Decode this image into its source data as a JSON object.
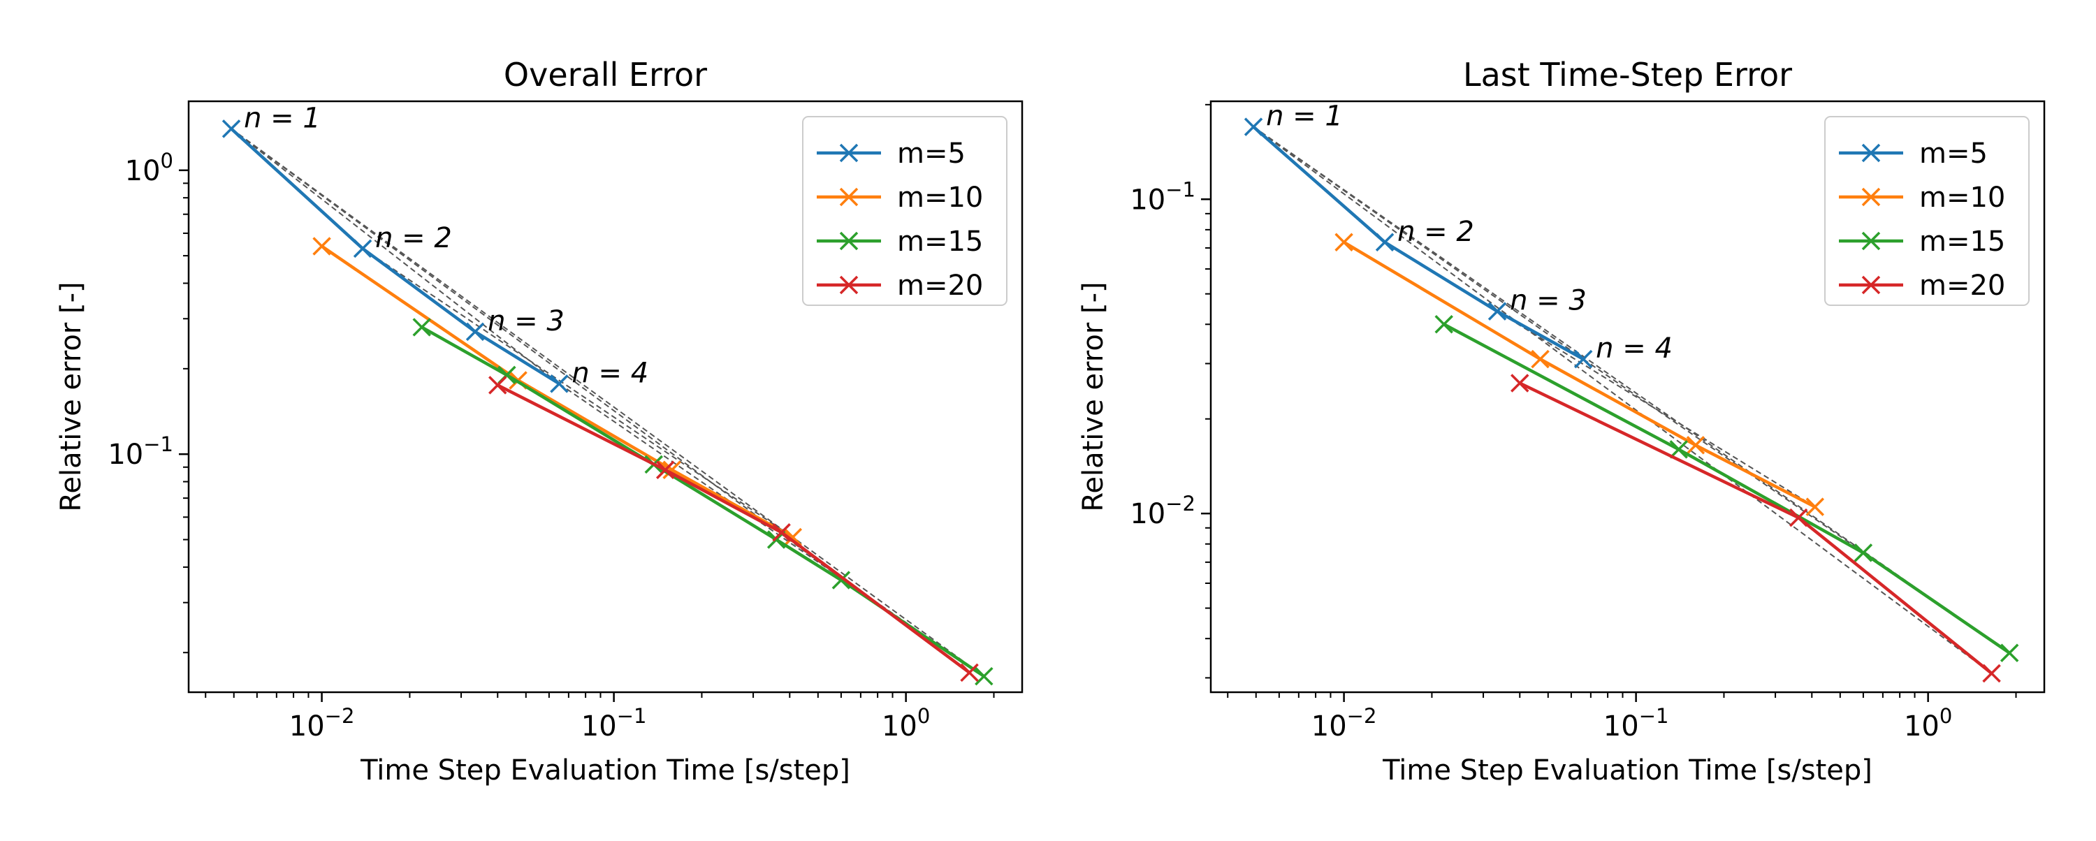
{
  "chart_data": [
    {
      "type": "line",
      "title": "Overall Error",
      "xlabel": "Time Step Evaluation Time [s/step]",
      "ylabel": "Relative error [-]",
      "xscale": "log",
      "yscale": "log",
      "xlim": [
        0.0035,
        2.5
      ],
      "ylim": [
        0.0145,
        1.75
      ],
      "xticks": [
        {
          "value": 0.01,
          "label": "10^-2"
        },
        {
          "value": 0.1,
          "label": "10^-1"
        },
        {
          "value": 1,
          "label": "10^0"
        }
      ],
      "yticks": [
        {
          "value": 0.1,
          "label": "10^-1"
        },
        {
          "value": 1,
          "label": "10^0"
        }
      ],
      "grid": false,
      "legend_position": "upper right",
      "series": [
        {
          "name": "m=5",
          "color": "#1f77b4",
          "x": [
            0.0049,
            0.0138,
            0.0335,
            0.065
          ],
          "y": [
            1.4,
            0.53,
            0.27,
            0.177
          ]
        },
        {
          "name": "m=10",
          "color": "#ff7f0e",
          "x": [
            0.01,
            0.047,
            0.158,
            0.41
          ],
          "y": [
            0.54,
            0.182,
            0.088,
            0.051
          ]
        },
        {
          "name": "m=15",
          "color": "#2ca02c",
          "x": [
            0.022,
            0.043,
            0.137,
            0.36,
            0.6,
            1.85
          ],
          "y": [
            0.28,
            0.19,
            0.092,
            0.05,
            0.036,
            0.0165
          ]
        },
        {
          "name": "m=20",
          "color": "#d62728",
          "x": [
            0.04,
            0.15,
            0.375,
            1.65
          ],
          "y": [
            0.175,
            0.088,
            0.053,
            0.017
          ]
        }
      ],
      "reference_lines": [
        {
          "x": [
            0.0049,
            0.065
          ],
          "y": [
            1.4,
            0.177
          ]
        },
        {
          "x": [
            0.0049,
            1.85
          ],
          "y": [
            1.4,
            0.0165
          ]
        },
        {
          "x": [
            0.0049,
            1.65
          ],
          "y": [
            1.4,
            0.017
          ]
        },
        {
          "x": [
            0.0138,
            0.41
          ],
          "y": [
            0.53,
            0.051
          ]
        },
        {
          "x": [
            0.065,
            1.85
          ],
          "y": [
            0.177,
            0.0165
          ]
        }
      ],
      "annotations": [
        {
          "text": "n = 1",
          "x": 0.0049,
          "y": 1.4
        },
        {
          "text": "n = 2",
          "x": 0.0138,
          "y": 0.53
        },
        {
          "text": "n = 3",
          "x": 0.0335,
          "y": 0.27
        },
        {
          "text": "n = 4",
          "x": 0.065,
          "y": 0.177
        }
      ]
    },
    {
      "type": "line",
      "title": "Last Time-Step Error",
      "xlabel": "Time Step Evaluation Time [s/step]",
      "ylabel": "Relative error [-]",
      "xscale": "log",
      "yscale": "log",
      "xlim": [
        0.0035,
        2.5
      ],
      "ylim": [
        0.0027,
        0.205
      ],
      "xticks": [
        {
          "value": 0.01,
          "label": "10^-2"
        },
        {
          "value": 0.1,
          "label": "10^-1"
        },
        {
          "value": 1,
          "label": "10^0"
        }
      ],
      "yticks": [
        {
          "value": 0.01,
          "label": "10^-2"
        },
        {
          "value": 0.1,
          "label": "10^-1"
        }
      ],
      "grid": false,
      "legend_position": "upper right",
      "series": [
        {
          "name": "m=5",
          "color": "#1f77b4",
          "x": [
            0.0049,
            0.0138,
            0.0335,
            0.066
          ],
          "y": [
            0.17,
            0.073,
            0.044,
            0.031
          ]
        },
        {
          "name": "m=10",
          "color": "#ff7f0e",
          "x": [
            0.01,
            0.047,
            0.16,
            0.41
          ],
          "y": [
            0.073,
            0.031,
            0.0165,
            0.0105
          ]
        },
        {
          "name": "m=15",
          "color": "#2ca02c",
          "x": [
            0.022,
            0.14,
            0.6,
            1.9
          ],
          "y": [
            0.04,
            0.016,
            0.0075,
            0.0036
          ]
        },
        {
          "name": "m=20",
          "color": "#d62728",
          "x": [
            0.04,
            0.36,
            1.65
          ],
          "y": [
            0.026,
            0.0097,
            0.0031
          ]
        }
      ],
      "reference_lines": [
        {
          "x": [
            0.0049,
            0.066
          ],
          "y": [
            0.17,
            0.031
          ]
        },
        {
          "x": [
            0.0049,
            1.9
          ],
          "y": [
            0.17,
            0.0036
          ]
        },
        {
          "x": [
            0.0049,
            1.65
          ],
          "y": [
            0.17,
            0.0031
          ]
        },
        {
          "x": [
            0.0138,
            0.41
          ],
          "y": [
            0.073,
            0.0105
          ]
        },
        {
          "x": [
            0.066,
            1.9
          ],
          "y": [
            0.031,
            0.0036
          ]
        }
      ],
      "annotations": [
        {
          "text": "n = 1",
          "x": 0.0049,
          "y": 0.17
        },
        {
          "text": "n = 2",
          "x": 0.0138,
          "y": 0.073
        },
        {
          "text": "n = 3",
          "x": 0.0335,
          "y": 0.044
        },
        {
          "text": "n = 4",
          "x": 0.066,
          "y": 0.031
        }
      ]
    }
  ]
}
